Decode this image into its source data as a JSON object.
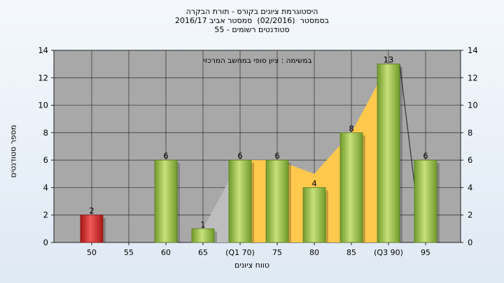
{
  "header": {
    "title_lines": [
      "היסטוגרמת ציונים בקורס - תורת הבקרה",
      "בסמסטר  (02/2016)  סמסטר אביב 2016/17",
      "סטודנטים רשומים - 55"
    ]
  },
  "chart_data": {
    "type": "bar",
    "title": "היסטוגרמת ציונים בקורס - תורת הבקרה",
    "subtitle": "בסמסטר  (02/2016)  סמסטר אביב 2016/17 / סטודנטים רשומים - 55",
    "annotation": "במשימה : ציון סופי במחשב המרכזי",
    "xlabel": "טווח ציונים",
    "ylabel": "מספר סטודנטים",
    "ylim": [
      0,
      14
    ],
    "yticks": [
      0,
      2,
      4,
      6,
      8,
      10,
      12,
      14
    ],
    "grid": true,
    "legend": "none",
    "categories": [
      "50",
      "55",
      "60",
      "65",
      "(Q1 70)",
      "75",
      "80",
      "85",
      "(Q3 90)",
      "95"
    ],
    "series": [
      {
        "values": [
          2,
          0,
          6,
          1,
          6,
          6,
          4,
          8,
          13,
          6
        ],
        "data_labels": [
          "2",
          "",
          "6",
          "1",
          "6",
          "6",
          "4",
          "8",
          "13",
          "6"
        ]
      }
    ],
    "colors": {
      "fail_bar": "#d42a2a",
      "pass_bar": "#9cc84a",
      "area_grey": "#bdbdbd",
      "area_yellow": "#ffc94d",
      "plot_bg": "#a8a8a8"
    }
  }
}
